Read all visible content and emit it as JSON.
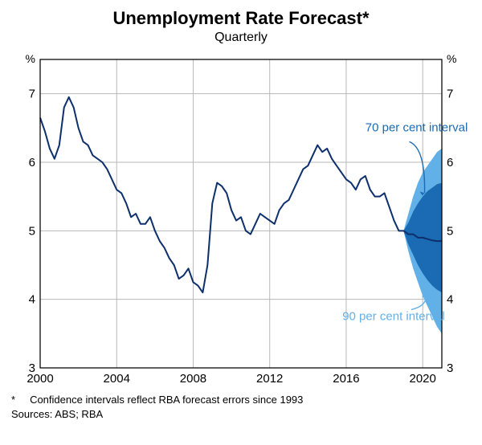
{
  "chart": {
    "type": "line_with_fan",
    "title": "Unemployment Rate Forecast*",
    "subtitle": "Quarterly",
    "y_label_left": "%",
    "y_label_right": "%",
    "ylim": [
      3,
      7.5
    ],
    "yticks": [
      3,
      4,
      5,
      6,
      7
    ],
    "xlim_years": [
      2000,
      2021
    ],
    "xticks": [
      2000,
      2004,
      2008,
      2012,
      2016,
      2020
    ],
    "background_color": "#ffffff",
    "grid_color": "#b8b8b8",
    "axis_color": "#000000",
    "line_color": "#0d2f6b",
    "line_width": 2,
    "band_90_color": "#62b0e8",
    "band_70_color": "#1a6bb3",
    "annotations": {
      "interval70": {
        "text": "70 per cent interval",
        "color": "#1a6bb3",
        "fontsize": 15
      },
      "interval90": {
        "text": "90 per cent interval",
        "color": "#62b0e8",
        "fontsize": 15
      }
    },
    "line_points_year_value": [
      [
        2000.0,
        6.65
      ],
      [
        2000.25,
        6.45
      ],
      [
        2000.5,
        6.2
      ],
      [
        2000.75,
        6.05
      ],
      [
        2001.0,
        6.25
      ],
      [
        2001.25,
        6.8
      ],
      [
        2001.5,
        6.95
      ],
      [
        2001.75,
        6.8
      ],
      [
        2002.0,
        6.5
      ],
      [
        2002.25,
        6.3
      ],
      [
        2002.5,
        6.25
      ],
      [
        2002.75,
        6.1
      ],
      [
        2003.0,
        6.05
      ],
      [
        2003.25,
        6.0
      ],
      [
        2003.5,
        5.9
      ],
      [
        2003.75,
        5.75
      ],
      [
        2004.0,
        5.6
      ],
      [
        2004.25,
        5.55
      ],
      [
        2004.5,
        5.4
      ],
      [
        2004.75,
        5.2
      ],
      [
        2005.0,
        5.25
      ],
      [
        2005.25,
        5.1
      ],
      [
        2005.5,
        5.1
      ],
      [
        2005.75,
        5.2
      ],
      [
        2006.0,
        5.0
      ],
      [
        2006.25,
        4.85
      ],
      [
        2006.5,
        4.75
      ],
      [
        2006.75,
        4.6
      ],
      [
        2007.0,
        4.5
      ],
      [
        2007.25,
        4.3
      ],
      [
        2007.5,
        4.35
      ],
      [
        2007.75,
        4.45
      ],
      [
        2008.0,
        4.25
      ],
      [
        2008.25,
        4.2
      ],
      [
        2008.5,
        4.1
      ],
      [
        2008.75,
        4.5
      ],
      [
        2009.0,
        5.4
      ],
      [
        2009.25,
        5.7
      ],
      [
        2009.5,
        5.65
      ],
      [
        2009.75,
        5.55
      ],
      [
        2010.0,
        5.3
      ],
      [
        2010.25,
        5.15
      ],
      [
        2010.5,
        5.2
      ],
      [
        2010.75,
        5.0
      ],
      [
        2011.0,
        4.95
      ],
      [
        2011.25,
        5.1
      ],
      [
        2011.5,
        5.25
      ],
      [
        2011.75,
        5.2
      ],
      [
        2012.0,
        5.15
      ],
      [
        2012.25,
        5.1
      ],
      [
        2012.5,
        5.3
      ],
      [
        2012.75,
        5.4
      ],
      [
        2013.0,
        5.45
      ],
      [
        2013.25,
        5.6
      ],
      [
        2013.5,
        5.75
      ],
      [
        2013.75,
        5.9
      ],
      [
        2014.0,
        5.95
      ],
      [
        2014.25,
        6.1
      ],
      [
        2014.5,
        6.25
      ],
      [
        2014.75,
        6.15
      ],
      [
        2015.0,
        6.2
      ],
      [
        2015.25,
        6.05
      ],
      [
        2015.5,
        5.95
      ],
      [
        2015.75,
        5.85
      ],
      [
        2016.0,
        5.75
      ],
      [
        2016.25,
        5.7
      ],
      [
        2016.5,
        5.6
      ],
      [
        2016.75,
        5.75
      ],
      [
        2017.0,
        5.8
      ],
      [
        2017.25,
        5.6
      ],
      [
        2017.5,
        5.5
      ],
      [
        2017.75,
        5.5
      ],
      [
        2018.0,
        5.55
      ],
      [
        2018.25,
        5.35
      ],
      [
        2018.5,
        5.15
      ],
      [
        2018.75,
        5.0
      ],
      [
        2019.0,
        5.0
      ],
      [
        2019.25,
        4.95
      ],
      [
        2019.5,
        4.95
      ],
      [
        2019.75,
        4.9
      ],
      [
        2020.0,
        4.9
      ],
      [
        2020.25,
        4.88
      ],
      [
        2020.5,
        4.86
      ],
      [
        2020.75,
        4.85
      ],
      [
        2021.0,
        4.85
      ]
    ],
    "fan_start_year": 2019.0,
    "band_90_year_lo_hi": [
      [
        2019.0,
        5.0,
        5.0
      ],
      [
        2019.25,
        4.7,
        5.25
      ],
      [
        2019.5,
        4.45,
        5.5
      ],
      [
        2019.75,
        4.25,
        5.7
      ],
      [
        2020.0,
        4.05,
        5.85
      ],
      [
        2020.25,
        3.9,
        5.95
      ],
      [
        2020.5,
        3.75,
        6.05
      ],
      [
        2020.75,
        3.6,
        6.15
      ],
      [
        2021.0,
        3.5,
        6.2
      ]
    ],
    "band_70_year_lo_hi": [
      [
        2019.0,
        5.0,
        5.0
      ],
      [
        2019.25,
        4.8,
        5.12
      ],
      [
        2019.5,
        4.65,
        5.28
      ],
      [
        2019.75,
        4.5,
        5.4
      ],
      [
        2020.0,
        4.38,
        5.5
      ],
      [
        2020.25,
        4.28,
        5.58
      ],
      [
        2020.5,
        4.2,
        5.63
      ],
      [
        2020.75,
        4.14,
        5.68
      ],
      [
        2021.0,
        4.1,
        5.7
      ]
    ]
  },
  "footnote": {
    "marker": "*",
    "text": "Confidence intervals reflect RBA forecast errors since 1993"
  },
  "sources": "Sources: ABS; RBA"
}
